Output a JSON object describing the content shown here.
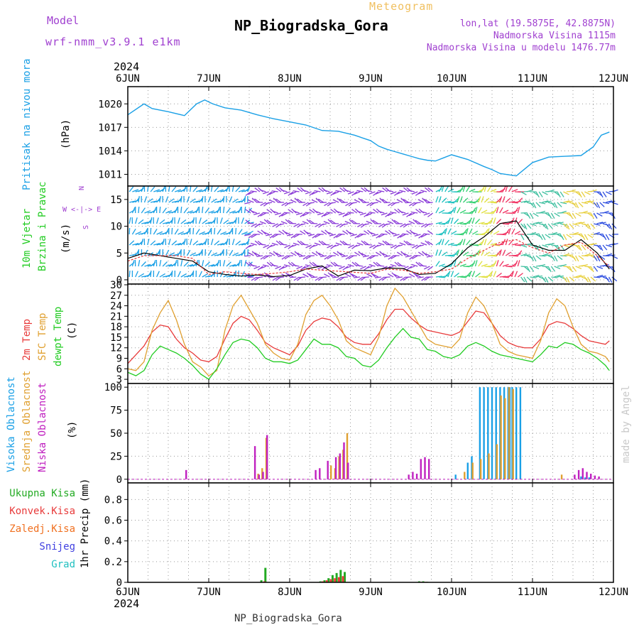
{
  "header": {
    "model_label": "Model",
    "model_name": "wrf-nmm_v3.9.1 e1km",
    "meteogram_label": "Meteogram",
    "station": "NP_Biogradska_Gora",
    "coords": "lon,lat (19.5875E, 42.8875N)",
    "elevation": "Nadmorska Visina 1115m",
    "model_elevation": "Nadmorska Visina u modelu 1476.77m",
    "year_top": "2024",
    "year_bottom": "2024",
    "footer_station": "NP_Biogradska_Gora",
    "credit": "made by Angel"
  },
  "colors": {
    "pressure": "#1aa0e6",
    "temp2m": "#e83a3a",
    "sfc_temp": "#e0a030",
    "dewpoint": "#22cc22",
    "cloud_high": "#1aa0e6",
    "cloud_mid": "#e0a030",
    "cloud_low": "#c020c0",
    "precip_total": "#22aa22",
    "precip_conv": "#e83a3a",
    "precip_frz": "#f07020",
    "precip_snow": "#4040e0",
    "precip_hail": "#20c0c0",
    "title_purple": "#a040d0",
    "meteogram_orange": "#f0c060"
  },
  "chart_data": [
    {
      "type": "line",
      "panel": "pressure",
      "ylabel": [
        "Pritisak na nivou mora",
        "(hPa)"
      ],
      "ylim": [
        1009.5,
        1022.2
      ],
      "yticks": [
        "1011",
        "1014",
        "1017",
        "1020"
      ],
      "x_labels": [
        "6JUN",
        "7JUN",
        "8JUN",
        "9JUN",
        "10JUN",
        "11JUN",
        "12JUN"
      ],
      "grid": true,
      "x": [
        0,
        0.2,
        0.3,
        0.5,
        0.7,
        0.85,
        0.95,
        1.05,
        1.2,
        1.4,
        1.6,
        1.8,
        2.0,
        2.2,
        2.4,
        2.6,
        2.8,
        3.0,
        3.1,
        3.2,
        3.3,
        3.4,
        3.5,
        3.6,
        3.7,
        3.8,
        3.9,
        4.0,
        4.2,
        4.4,
        4.5,
        4.6,
        4.8,
        5.0,
        5.2,
        5.4,
        5.6,
        5.75,
        5.85,
        5.95
      ],
      "series": [
        {
          "name": "MSLP",
          "values": [
            1018.6,
            1020.0,
            1019.4,
            1019.0,
            1018.5,
            1020.0,
            1020.5,
            1020.0,
            1019.5,
            1019.2,
            1018.6,
            1018.1,
            1017.7,
            1017.3,
            1016.6,
            1016.5,
            1016.0,
            1015.3,
            1014.6,
            1014.2,
            1013.9,
            1013.6,
            1013.3,
            1013.0,
            1012.8,
            1012.7,
            1013.1,
            1013.5,
            1012.9,
            1012.0,
            1011.6,
            1011.1,
            1010.8,
            1012.5,
            1013.2,
            1013.3,
            1013.4,
            1014.5,
            1016.0,
            1016.4
          ]
        }
      ]
    },
    {
      "type": "line",
      "panel": "wind",
      "ylabel": [
        "10m Vjetar",
        "Brzina i Pravac",
        "(m/s)"
      ],
      "direction_legend": [
        "N",
        "W <-|-> E",
        "S"
      ],
      "ylim": [
        -0.8,
        17.5
      ],
      "yticks": [
        "0",
        "5",
        "10",
        "15"
      ],
      "grid": true,
      "x": [
        0,
        0.2,
        0.4,
        0.6,
        0.8,
        1.0,
        1.2,
        1.4,
        1.6,
        1.8,
        2.0,
        2.2,
        2.4,
        2.6,
        2.8,
        3.0,
        3.2,
        3.4,
        3.6,
        3.8,
        4.0,
        4.2,
        4.4,
        4.6,
        4.8,
        5.0,
        5.2,
        5.4,
        5.6,
        5.8,
        5.95
      ],
      "series": [
        {
          "name": "gust",
          "values": [
            4.0,
            5.0,
            4.5,
            4.0,
            3.5,
            1.5,
            1.0,
            0.7,
            0.9,
            0.6,
            0.8,
            2.0,
            2.6,
            0.7,
            1.8,
            1.7,
            2.2,
            2.1,
            1.0,
            1.2,
            3.0,
            6.0,
            8.0,
            10.5,
            11.0,
            6.5,
            5.5,
            5.5,
            7.5,
            5.0,
            2.0
          ]
        },
        {
          "name": "speed",
          "values": [
            3.5,
            4.5,
            4.5,
            4.5,
            4.0,
            1.0,
            1.5,
            1.2,
            1.0,
            1.2,
            1.5,
            2.0,
            1.8,
            1.6,
            1.4,
            1.2,
            2.0,
            1.8,
            1.2,
            1.5,
            2.0,
            4.0,
            5.5,
            7.0,
            7.5,
            6.0,
            5.0,
            6.5,
            7.0,
            4.5,
            2.5
          ]
        }
      ]
    },
    {
      "type": "line",
      "panel": "temperature",
      "ylabel": [
        "2m Temp",
        "SFC Temp",
        "dewpt Temp",
        "(C)"
      ],
      "ylim": [
        1.8,
        30.2
      ],
      "yticks": [
        "3",
        "6",
        "9",
        "12",
        "15",
        "18",
        "21",
        "24",
        "27",
        "30"
      ],
      "grid": true,
      "x": [
        0,
        0.1,
        0.2,
        0.3,
        0.4,
        0.5,
        0.6,
        0.7,
        0.8,
        0.9,
        1.0,
        1.1,
        1.2,
        1.3,
        1.4,
        1.5,
        1.6,
        1.7,
        1.8,
        1.9,
        2.0,
        2.1,
        2.2,
        2.3,
        2.4,
        2.5,
        2.6,
        2.7,
        2.8,
        2.9,
        3.0,
        3.1,
        3.2,
        3.3,
        3.4,
        3.5,
        3.6,
        3.7,
        3.8,
        3.9,
        4.0,
        4.1,
        4.2,
        4.3,
        4.4,
        4.5,
        4.6,
        4.7,
        4.8,
        4.9,
        5.0,
        5.1,
        5.2,
        5.3,
        5.4,
        5.5,
        5.6,
        5.7,
        5.8,
        5.9,
        5.95
      ],
      "series": [
        {
          "name": "2m Temp",
          "values": [
            7.5,
            10.0,
            12.5,
            16.5,
            18.5,
            18.0,
            14.5,
            12.0,
            10.5,
            8.5,
            8.0,
            9.5,
            14.5,
            19.0,
            21.0,
            20.0,
            17.0,
            13.5,
            12.0,
            11.0,
            10.0,
            12.5,
            17.0,
            19.5,
            20.5,
            20.0,
            18.0,
            15.0,
            13.5,
            13.0,
            13.0,
            16.0,
            20.0,
            23.0,
            23.0,
            20.5,
            18.5,
            17.0,
            16.5,
            16.0,
            15.5,
            16.5,
            19.5,
            22.5,
            22.0,
            19.0,
            15.5,
            13.5,
            12.5,
            12.0,
            12.0,
            14.5,
            18.5,
            19.5,
            19.0,
            17.5,
            15.5,
            14.0,
            13.5,
            13.0,
            14.0
          ]
        },
        {
          "name": "SFC Temp",
          "values": [
            6.0,
            5.5,
            8.0,
            17.0,
            22.0,
            25.5,
            20.0,
            13.0,
            8.0,
            6.5,
            4.0,
            5.5,
            17.0,
            24.0,
            27.0,
            23.0,
            19.0,
            13.0,
            10.5,
            9.0,
            8.5,
            13.0,
            21.5,
            25.5,
            27.0,
            24.0,
            20.0,
            14.0,
            12.0,
            11.0,
            10.0,
            15.0,
            24.0,
            29.0,
            26.5,
            22.5,
            18.5,
            14.5,
            13.0,
            12.5,
            12.0,
            14.5,
            22.0,
            26.5,
            24.0,
            19.0,
            13.0,
            11.0,
            10.0,
            9.5,
            9.0,
            14.0,
            22.0,
            26.0,
            24.0,
            18.0,
            13.0,
            11.0,
            10.5,
            9.5,
            8.0
          ]
        },
        {
          "name": "dewpt Temp",
          "values": [
            5.0,
            4.0,
            5.5,
            10.0,
            12.5,
            11.5,
            10.5,
            9.0,
            7.0,
            4.5,
            3.0,
            6.0,
            10.0,
            13.5,
            14.5,
            14.0,
            12.0,
            9.0,
            8.0,
            8.0,
            7.5,
            8.5,
            11.5,
            14.5,
            13.0,
            13.0,
            12.0,
            9.5,
            9.0,
            7.0,
            6.5,
            8.5,
            12.0,
            15.0,
            17.5,
            15.0,
            14.5,
            11.5,
            11.0,
            9.5,
            9.0,
            10.0,
            12.5,
            13.5,
            12.5,
            11.0,
            10.0,
            9.5,
            9.0,
            8.5,
            8.0,
            10.0,
            12.5,
            12.0,
            13.5,
            13.0,
            11.5,
            10.5,
            9.0,
            7.0,
            5.5
          ]
        }
      ]
    },
    {
      "type": "bar",
      "panel": "clouds",
      "ylabel": [
        "Visoka Oblacnost",
        "Srednja Oblacnost",
        "Niska Oblacnost",
        "(%)"
      ],
      "ylim": [
        -4,
        104
      ],
      "yticks": [
        "0",
        "25",
        "50",
        "75",
        "100"
      ],
      "grid": true,
      "series": [
        {
          "name": "Visoka Oblacnost",
          "x": [
            4.05,
            4.2,
            4.25,
            4.35,
            4.4,
            4.45,
            4.5,
            4.55,
            4.6,
            4.65,
            4.7,
            4.72,
            4.75,
            4.8,
            4.85,
            5.6,
            5.65,
            5.7
          ],
          "values": [
            5,
            18,
            25,
            100,
            100,
            100,
            100,
            100,
            100,
            100,
            100,
            100,
            100,
            100,
            100,
            3,
            2,
            2
          ]
        },
        {
          "name": "Srednja Oblacnost",
          "x": [
            1.6,
            1.65,
            1.7,
            2.5,
            2.55,
            2.6,
            2.65,
            2.7,
            4.15,
            4.25,
            4.35,
            4.45,
            4.55,
            4.6,
            4.65,
            4.7,
            4.75,
            5.35
          ],
          "values": [
            6,
            12,
            45,
            15,
            12,
            25,
            32,
            50,
            8,
            18,
            22,
            28,
            38,
            91,
            88,
            100,
            98,
            5
          ]
        },
        {
          "name": "Niska Oblacnost",
          "x": [
            0.7,
            1.55,
            1.6,
            1.65,
            1.7,
            2.3,
            2.35,
            2.45,
            2.55,
            2.6,
            2.65,
            2.7,
            3.45,
            3.5,
            3.55,
            3.6,
            3.65,
            3.7,
            5.5,
            5.55,
            5.6,
            5.65,
            5.7,
            5.75,
            5.8
          ],
          "values": [
            10,
            36,
            5,
            8,
            48,
            10,
            12,
            20,
            24,
            28,
            40,
            18,
            5,
            8,
            6,
            22,
            24,
            22,
            5,
            10,
            12,
            8,
            6,
            4,
            3
          ]
        }
      ]
    },
    {
      "type": "bar",
      "panel": "precipitation",
      "ylabel": [
        "1hr Precip (mm)"
      ],
      "legend": [
        "Ukupna Kisa",
        "Konvek.Kisa",
        "Zaledj.Kisa",
        "Snijeg",
        "Grad"
      ],
      "ylim": [
        0,
        0.96
      ],
      "yticks": [
        "0",
        "0.2",
        "0.4",
        "0.6",
        "0.8"
      ],
      "x_labels": [
        "6JUN",
        "7JUN",
        "8JUN",
        "9JUN",
        "10JUN",
        "11JUN",
        "12JUN"
      ],
      "grid": true,
      "series": [
        {
          "name": "Ukupna Kisa",
          "x": [
            1.65,
            1.7,
            2.38,
            2.43,
            2.48,
            2.53,
            2.58,
            2.63,
            2.68,
            3.6,
            3.65,
            3.7
          ],
          "values": [
            0.02,
            0.14,
            0.01,
            0.02,
            0.04,
            0.07,
            0.09,
            0.12,
            0.1,
            0.01,
            0.01,
            0.005
          ]
        },
        {
          "name": "Konvek.Kisa",
          "x": [
            1.68,
            2.4,
            2.45,
            2.5,
            2.55,
            2.6,
            2.65,
            3.62,
            3.67
          ],
          "values": [
            0.01,
            0.01,
            0.02,
            0.03,
            0.04,
            0.05,
            0.06,
            0.005,
            0.005
          ]
        }
      ]
    }
  ]
}
